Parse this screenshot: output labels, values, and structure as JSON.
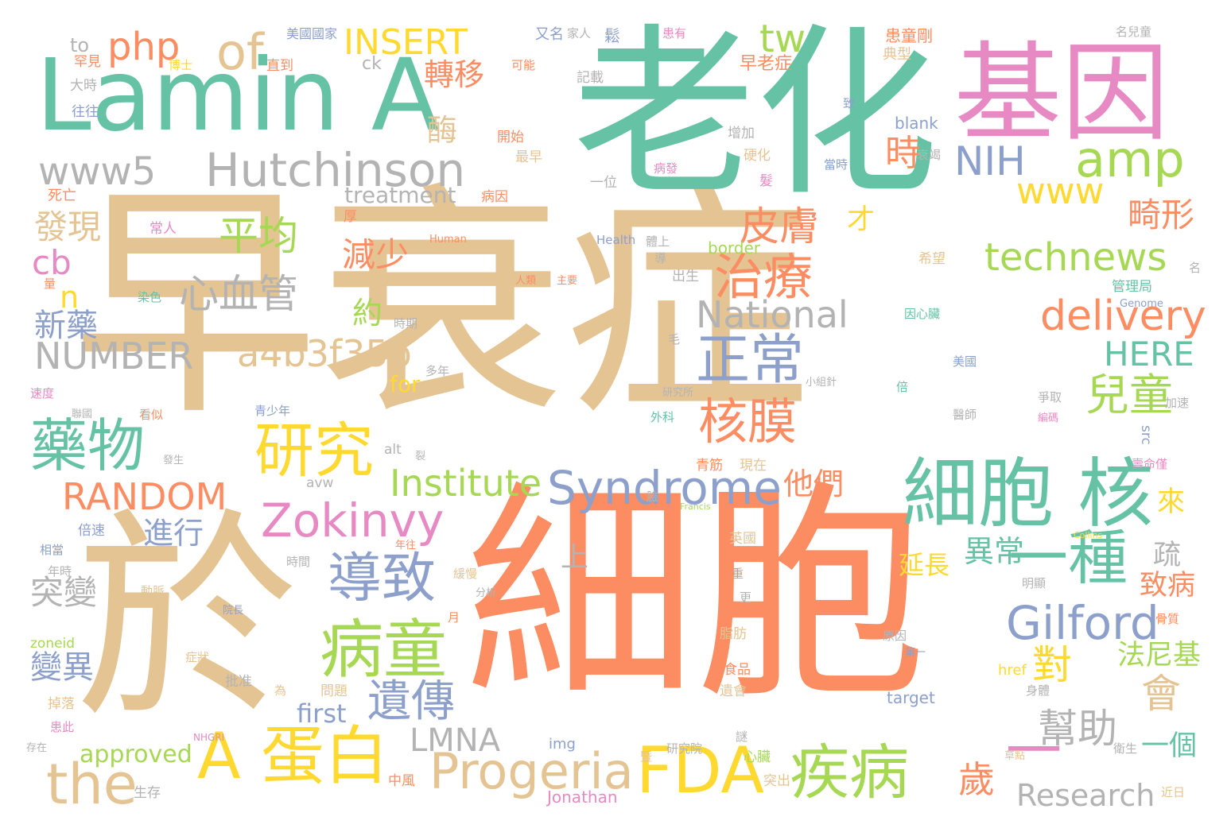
{
  "palette": {
    "tan": "#e5c494",
    "teal": "#66c2a5",
    "orange": "#fc8d62",
    "pink": "#e78ac3",
    "blue": "#8da0cb",
    "green": "#a6d854",
    "yellow": "#ffd92f",
    "gray": "#b3b3b3"
  },
  "words": [
    {
      "text": "早衰症",
      "color": "tan"
    },
    {
      "text": "細胞",
      "color": "orange"
    },
    {
      "text": "老化",
      "color": "teal"
    },
    {
      "text": "於",
      "color": "tan"
    },
    {
      "text": "Lamin A",
      "color": "teal"
    },
    {
      "text": "基因",
      "color": "pink"
    },
    {
      "text": "Hutchinson",
      "color": "gray"
    },
    {
      "text": "www5",
      "color": "gray"
    },
    {
      "text": "細胞 核",
      "color": "teal"
    },
    {
      "text": "藥物",
      "color": "teal"
    },
    {
      "text": "研究",
      "color": "yellow"
    },
    {
      "text": "A 蛋白",
      "color": "yellow"
    },
    {
      "text": "病童",
      "color": "green"
    },
    {
      "text": "Zokinvy",
      "color": "pink"
    },
    {
      "text": "導致",
      "color": "blue"
    },
    {
      "text": "正常",
      "color": "blue"
    },
    {
      "text": "核膜",
      "color": "orange"
    },
    {
      "text": "治療",
      "color": "orange"
    },
    {
      "text": "FDA",
      "color": "yellow"
    },
    {
      "text": "疾病",
      "color": "green"
    },
    {
      "text": "the",
      "color": "tan"
    },
    {
      "text": "Progeria",
      "color": "tan"
    },
    {
      "text": "Syndrome",
      "color": "blue"
    },
    {
      "text": "Gilford",
      "color": "blue"
    },
    {
      "text": "一種",
      "color": "teal"
    },
    {
      "text": "一",
      "color": "pink"
    },
    {
      "text": "兒童",
      "color": "green"
    },
    {
      "text": "delivery",
      "color": "orange"
    },
    {
      "text": "technews",
      "color": "green"
    },
    {
      "text": "amp",
      "color": "green"
    },
    {
      "text": "www",
      "color": "yellow"
    },
    {
      "text": "of",
      "color": "tan"
    },
    {
      "text": "php",
      "color": "orange"
    },
    {
      "text": "INSERT",
      "color": "yellow"
    },
    {
      "text": "tw",
      "color": "green"
    },
    {
      "text": "NIH",
      "color": "blue"
    },
    {
      "text": "National",
      "color": "gray"
    },
    {
      "text": "a4b3f35b",
      "color": "tan"
    },
    {
      "text": "NUMBER",
      "color": "gray"
    },
    {
      "text": "RANDOM",
      "color": "orange"
    },
    {
      "text": "Institute",
      "color": "green"
    },
    {
      "text": "HERE",
      "color": "teal"
    },
    {
      "text": "Research",
      "color": "gray"
    },
    {
      "text": "LMNA",
      "color": "gray"
    },
    {
      "text": "平均",
      "color": "green"
    },
    {
      "text": "心血管",
      "color": "gray"
    },
    {
      "text": "皮膚",
      "color": "orange"
    },
    {
      "text": "遺傳",
      "color": "blue"
    },
    {
      "text": "對",
      "color": "yellow"
    },
    {
      "text": "會",
      "color": "tan"
    },
    {
      "text": "幫助",
      "color": "gray"
    },
    {
      "text": "歲",
      "color": "orange"
    },
    {
      "text": "轉移",
      "color": "orange"
    },
    {
      "text": "酶",
      "color": "tan"
    },
    {
      "text": "時",
      "color": "orange"
    },
    {
      "text": "畸形",
      "color": "orange"
    },
    {
      "text": "減少",
      "color": "orange"
    },
    {
      "text": "約",
      "color": "green"
    },
    {
      "text": "新藥",
      "color": "blue"
    },
    {
      "text": "發現",
      "color": "tan"
    },
    {
      "text": "突變",
      "color": "gray"
    },
    {
      "text": "變異",
      "color": "blue"
    },
    {
      "text": "進行",
      "color": "blue"
    },
    {
      "text": "他們",
      "color": "orange"
    },
    {
      "text": "異常",
      "color": "teal"
    },
    {
      "text": "延長",
      "color": "yellow"
    },
    {
      "text": "致病",
      "color": "orange"
    },
    {
      "text": "法尼基",
      "color": "green"
    },
    {
      "text": "一個",
      "color": "teal"
    },
    {
      "text": "來",
      "color": "yellow"
    },
    {
      "text": "疏",
      "color": "gray"
    },
    {
      "text": "上",
      "color": "gray"
    },
    {
      "text": "才",
      "color": "yellow"
    },
    {
      "text": "cb",
      "color": "pink"
    },
    {
      "text": "n",
      "color": "yellow"
    },
    {
      "text": "treatment",
      "color": "gray"
    },
    {
      "text": "for",
      "color": "yellow"
    },
    {
      "text": "first",
      "color": "blue"
    },
    {
      "text": "approved",
      "color": "green"
    },
    {
      "text": "to",
      "color": "gray"
    },
    {
      "text": "ck",
      "color": "gray"
    },
    {
      "text": "blank",
      "color": "blue"
    },
    {
      "text": "border",
      "color": "green"
    },
    {
      "text": "Human",
      "color": "orange"
    },
    {
      "text": "Health",
      "color": "blue"
    },
    {
      "text": "Genome",
      "color": "blue"
    },
    {
      "text": "zoneid",
      "color": "green"
    },
    {
      "text": "alt",
      "color": "gray"
    },
    {
      "text": "avw",
      "color": "gray"
    },
    {
      "text": "Francis",
      "color": "green"
    },
    {
      "text": "Collins",
      "color": "yellow"
    },
    {
      "text": "href",
      "color": "yellow"
    },
    {
      "text": "target",
      "color": "blue"
    },
    {
      "text": "src",
      "color": "blue"
    },
    {
      "text": "img",
      "color": "blue"
    },
    {
      "text": "Jonathan",
      "color": "pink"
    },
    {
      "text": "NHGRI",
      "color": "pink"
    },
    {
      "text": "早老症",
      "color": "orange"
    },
    {
      "text": "患童剛",
      "color": "orange"
    },
    {
      "text": "典型",
      "color": "tan"
    },
    {
      "text": "美國國家",
      "color": "blue"
    },
    {
      "text": "又名",
      "color": "blue"
    },
    {
      "text": "家人",
      "color": "gray"
    },
    {
      "text": "鬆",
      "color": "blue"
    },
    {
      "text": "患有",
      "color": "pink"
    },
    {
      "text": "名兒童",
      "color": "gray"
    },
    {
      "text": "罕見",
      "color": "orange"
    },
    {
      "text": "博士",
      "color": "yellow"
    },
    {
      "text": "直到",
      "color": "orange"
    },
    {
      "text": "可能",
      "color": "orange"
    },
    {
      "text": "記載",
      "color": "gray"
    },
    {
      "text": "大時",
      "color": "gray"
    },
    {
      "text": "往往",
      "color": "blue"
    },
    {
      "text": "致",
      "color": "blue"
    },
    {
      "text": "增加",
      "color": "gray"
    },
    {
      "text": "衰竭",
      "color": "gray"
    },
    {
      "text": "開始",
      "color": "orange"
    },
    {
      "text": "最早",
      "color": "tan"
    },
    {
      "text": "硬化",
      "color": "tan"
    },
    {
      "text": "病發",
      "color": "pink"
    },
    {
      "text": "當時",
      "color": "blue"
    },
    {
      "text": "一位",
      "color": "gray"
    },
    {
      "text": "病因",
      "color": "orange"
    },
    {
      "text": "髮",
      "color": "pink"
    },
    {
      "text": "死亡",
      "color": "orange"
    },
    {
      "text": "常人",
      "color": "pink"
    },
    {
      "text": "厚",
      "color": "orange"
    },
    {
      "text": "體上",
      "color": "gray"
    },
    {
      "text": "希望",
      "color": "tan"
    },
    {
      "text": "導",
      "color": "gray"
    },
    {
      "text": "出生",
      "color": "gray"
    },
    {
      "text": "管理局",
      "color": "teal"
    },
    {
      "text": "染色",
      "color": "teal"
    },
    {
      "text": "人類",
      "color": "orange"
    },
    {
      "text": "主要",
      "color": "orange"
    },
    {
      "text": "無彈性",
      "color": "tan"
    },
    {
      "text": "量",
      "color": "orange"
    },
    {
      "text": "名",
      "color": "gray"
    },
    {
      "text": "因心臟",
      "color": "teal"
    },
    {
      "text": "時期",
      "color": "gray"
    },
    {
      "text": "毛",
      "color": "gray"
    },
    {
      "text": "美國",
      "color": "blue"
    },
    {
      "text": "多年",
      "color": "gray"
    },
    {
      "text": "小組針",
      "color": "gray"
    },
    {
      "text": "倍",
      "color": "teal"
    },
    {
      "text": "速度",
      "color": "pink"
    },
    {
      "text": "研究所",
      "color": "gray"
    },
    {
      "text": "爭取",
      "color": "gray"
    },
    {
      "text": "加速",
      "color": "gray"
    },
    {
      "text": "看似",
      "color": "orange"
    },
    {
      "text": "青少年",
      "color": "blue"
    },
    {
      "text": "外科",
      "color": "teal"
    },
    {
      "text": "醫師",
      "color": "gray"
    },
    {
      "text": "聯國",
      "color": "gray"
    },
    {
      "text": "編碼",
      "color": "pink"
    },
    {
      "text": "發生",
      "color": "gray"
    },
    {
      "text": "現在",
      "color": "tan"
    },
    {
      "text": "青筋",
      "color": "orange"
    },
    {
      "text": "壽命僅",
      "color": "pink"
    },
    {
      "text": "裂",
      "color": "gray"
    },
    {
      "text": "臉",
      "color": "gray"
    },
    {
      "text": "倍速",
      "color": "blue"
    },
    {
      "text": "相當",
      "color": "blue"
    },
    {
      "text": "年往",
      "color": "orange"
    },
    {
      "text": "英國",
      "color": "tan"
    },
    {
      "text": "年時",
      "color": "gray"
    },
    {
      "text": "時間",
      "color": "gray"
    },
    {
      "text": "緩慢",
      "color": "tan"
    },
    {
      "text": "體重",
      "color": "orange"
    },
    {
      "text": "動脈",
      "color": "tan"
    },
    {
      "text": "分析",
      "color": "gray"
    },
    {
      "text": "更",
      "color": "gray"
    },
    {
      "text": "明顯",
      "color": "gray"
    },
    {
      "text": "院長",
      "color": "blue"
    },
    {
      "text": "月",
      "color": "orange"
    },
    {
      "text": "脂肪",
      "color": "tan"
    },
    {
      "text": "骨質",
      "color": "orange"
    },
    {
      "text": "原因",
      "color": "gray"
    },
    {
      "text": "症狀",
      "color": "tan"
    },
    {
      "text": "批准",
      "color": "gray"
    },
    {
      "text": "第一",
      "color": "blue"
    },
    {
      "text": "食品",
      "color": "orange"
    },
    {
      "text": "為",
      "color": "tan"
    },
    {
      "text": "問題",
      "color": "tan"
    },
    {
      "text": "遺會",
      "color": "tan"
    },
    {
      "text": "掉落",
      "color": "tan"
    },
    {
      "text": "身體",
      "color": "gray"
    },
    {
      "text": "患此",
      "color": "pink"
    },
    {
      "text": "謎",
      "color": "gray"
    },
    {
      "text": "存在",
      "color": "gray"
    },
    {
      "text": "研究院",
      "color": "gray"
    },
    {
      "text": "心臟",
      "color": "green"
    },
    {
      "text": "暨",
      "color": "tan"
    },
    {
      "text": "草點",
      "color": "tan"
    },
    {
      "text": "衛生",
      "color": "gray"
    },
    {
      "text": "生存",
      "color": "gray"
    },
    {
      "text": "中風",
      "color": "orange"
    },
    {
      "text": "突出",
      "color": "tan"
    },
    {
      "text": "近日",
      "color": "tan"
    }
  ]
}
